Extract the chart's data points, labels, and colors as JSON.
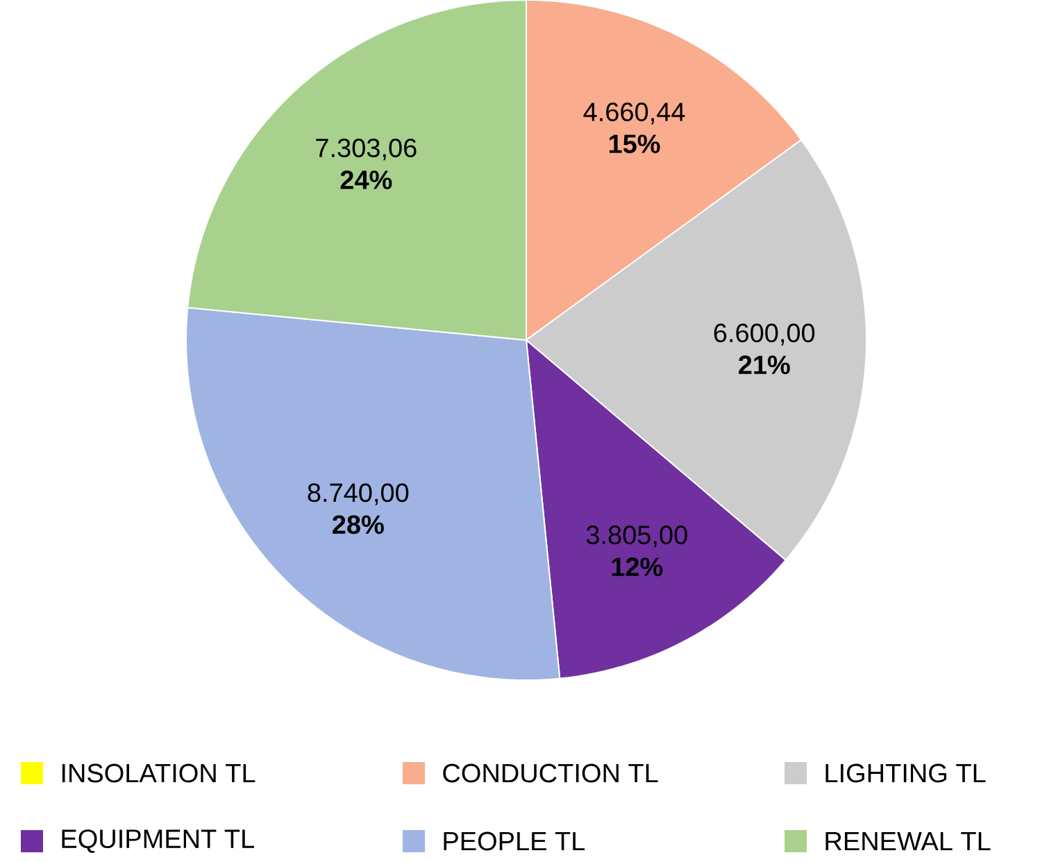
{
  "chart_data": {
    "type": "pie",
    "categories": [
      "INSOLATION TL",
      "CONDUCTION TL",
      "LIGHTING TL",
      "EQUIPMENT TL",
      "PEOPLE TL",
      "RENEWAL TL"
    ],
    "values": [
      0,
      4660.44,
      6600.0,
      3805.0,
      8740.0,
      7303.06
    ],
    "colors": [
      "#ffff00",
      "#f9ad8e",
      "#cccccc",
      "#7030a0",
      "#9fb4e2",
      "#a9d18e"
    ],
    "value_labels": [
      null,
      "4.660,44 **15%**",
      "6.600,00 **21%**",
      "3.805,00 **12%**",
      "8.740,00 **28%**",
      "7.303,06 **24%**"
    ],
    "legend": "bottom"
  }
}
